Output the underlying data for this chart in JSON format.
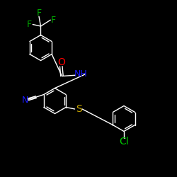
{
  "background_color": "#000000",
  "bond_color": "#ffffff",
  "atom_colors": {
    "O": "#ff0000",
    "N": "#1a1aff",
    "S": "#ccaa00",
    "Cl": "#00cc00",
    "F": "#00aa00",
    "C": "#ffffff"
  },
  "font_size": 9,
  "lw": 1.0
}
